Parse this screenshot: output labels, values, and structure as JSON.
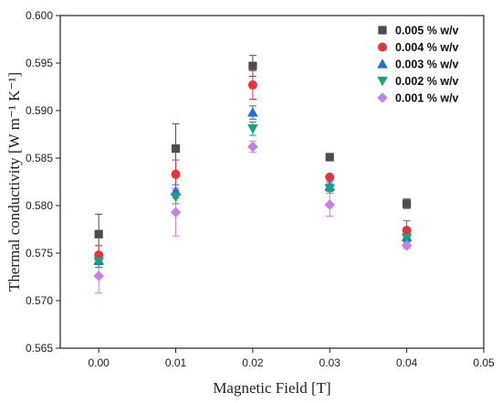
{
  "chart_data": {
    "type": "scatter",
    "xlabel": "Magnetic Field [T]",
    "ylabel": "Thermal conductivity [W m⁻¹ K⁻¹]",
    "xlim": [
      -0.005,
      0.05
    ],
    "ylim": [
      0.565,
      0.6
    ],
    "x_ticks": [
      "0.00",
      "0.01",
      "0.02",
      "0.03",
      "0.04",
      "0.05"
    ],
    "x_tick_values": [
      0,
      0.01,
      0.02,
      0.03,
      0.04,
      0.05
    ],
    "y_ticks": [
      "0.565",
      "0.570",
      "0.575",
      "0.580",
      "0.585",
      "0.590",
      "0.595",
      "0.600"
    ],
    "y_tick_values": [
      0.565,
      0.57,
      0.575,
      0.58,
      0.585,
      0.59,
      0.595,
      0.6
    ],
    "legend_position": "top-right",
    "grid": false,
    "x": [
      0,
      0.01,
      0.02,
      0.03,
      0.04
    ],
    "series": [
      {
        "name": "0.005 % w/v",
        "color": "#4d4d4d",
        "marker": "square",
        "values": [
          0.577,
          0.586,
          0.5947,
          0.5851,
          0.5802
        ],
        "errors": [
          0.0021,
          0.0026,
          0.0011,
          0.0,
          0.0005
        ]
      },
      {
        "name": "0.004 % w/v",
        "color": "#e8333a",
        "marker": "circle",
        "values": [
          0.5748,
          0.5833,
          0.5927,
          0.583,
          0.5774
        ],
        "errors": [
          0.001,
          0.0015,
          0.0015,
          0.0,
          0.001
        ]
      },
      {
        "name": "0.003 % w/v",
        "color": "#1f6fd6",
        "marker": "triangle-up",
        "values": [
          0.5742,
          0.5815,
          0.5898,
          0.582,
          0.5767
        ],
        "errors": [
          0.0007,
          0.0007,
          0.0007,
          0.0005,
          0.0004
        ]
      },
      {
        "name": "0.002 % w/v",
        "color": "#1aa37a",
        "marker": "triangle-down",
        "values": [
          0.5741,
          0.5809,
          0.5881,
          0.5818,
          0.5766
        ],
        "errors": [
          0.0006,
          0.0007,
          0.0007,
          0.0005,
          0.0004
        ]
      },
      {
        "name": "0.001 % w/v",
        "color": "#c77fe8",
        "marker": "diamond",
        "values": [
          0.5726,
          0.5793,
          0.5862,
          0.5801,
          0.5758
        ],
        "errors": [
          0.0018,
          0.0025,
          0.0006,
          0.0012,
          0.0003
        ]
      }
    ]
  }
}
